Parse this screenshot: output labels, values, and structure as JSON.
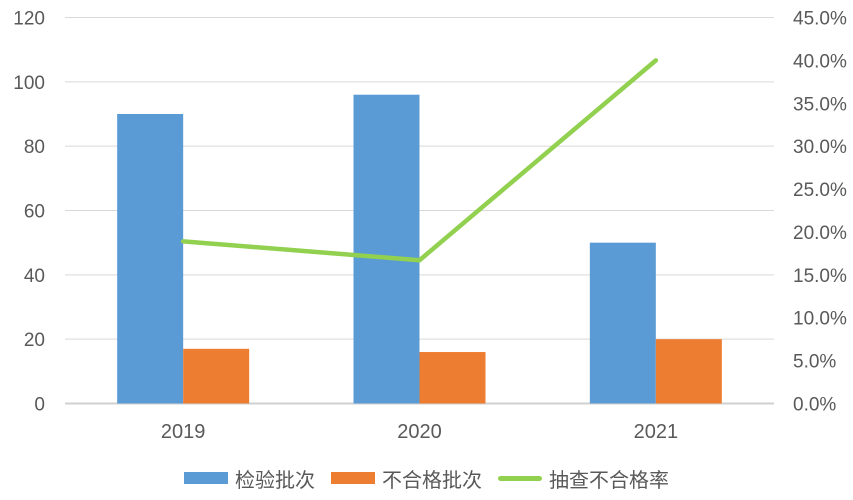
{
  "chart_data": {
    "type": "combo",
    "title": "",
    "categories": [
      "2019",
      "2020",
      "2021"
    ],
    "series": [
      {
        "name": "检验批次",
        "type": "bar",
        "axis": "left",
        "color": "#5B9BD5",
        "values": [
          90,
          96,
          50
        ]
      },
      {
        "name": "不合格批次",
        "type": "bar",
        "axis": "left",
        "color": "#ED7D31",
        "values": [
          17,
          16,
          20
        ]
      },
      {
        "name": "抽查不合格率",
        "type": "line",
        "axis": "right",
        "color": "#92D050",
        "values": [
          18.9,
          16.7,
          40.0
        ],
        "value_format": "percent"
      }
    ],
    "left_axis": {
      "min": 0,
      "max": 120,
      "step": 20,
      "ticks": [
        "0",
        "20",
        "40",
        "60",
        "80",
        "100",
        "120"
      ]
    },
    "right_axis": {
      "min": 0,
      "max": 45,
      "step": 5,
      "ticks": [
        "0.0%",
        "5.0%",
        "10.0%",
        "15.0%",
        "20.0%",
        "25.0%",
        "30.0%",
        "35.0%",
        "40.0%",
        "45.0%"
      ]
    },
    "grid": true,
    "grid_color": "#D9D9D9",
    "baseline_color": "#D0D0D0",
    "axis_text_color": "#595959",
    "legend_position": "bottom"
  }
}
